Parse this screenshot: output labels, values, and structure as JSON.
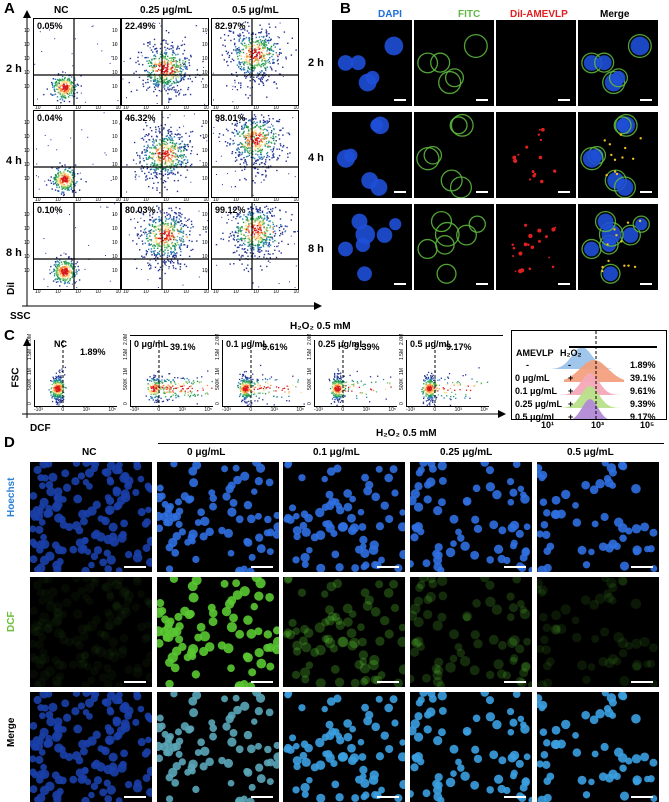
{
  "panel_labels": {
    "a": "A",
    "b": "B",
    "c": "C",
    "d": "D"
  },
  "panelA": {
    "columns": [
      "NC",
      "0.25 μg/mL",
      "0.5 μg/mL"
    ],
    "rows": [
      "2 h",
      "4 h",
      "8 h"
    ],
    "percentages": [
      [
        "0.05%",
        "22.49%",
        "82.97%"
      ],
      [
        "0.04%",
        "46.32%",
        "98.01%"
      ],
      [
        "0.10%",
        "80.03%",
        "99.12%"
      ]
    ],
    "y_axis_label": "DiI",
    "x_axis_label": "SSC",
    "tick": "10"
  },
  "panelB": {
    "columns": [
      "DAPI",
      "FITC",
      "DiI-AMEVLP",
      "Merge"
    ],
    "rows": [
      "2 h",
      "4 h",
      "8 h"
    ],
    "colors": {
      "DAPI": "#1e6fd9",
      "FITC": "#5fb846",
      "DiI-AMEVLP": "#e02020",
      "Merge": "#000000"
    }
  },
  "panelC": {
    "treatment_header": "H₂O₂ 0.5 mM",
    "plots": [
      {
        "title": "NC",
        "pct": "1.89%"
      },
      {
        "title": "0 μg/mL",
        "pct": "39.1%"
      },
      {
        "title": "0.1 μg/mL",
        "pct": "9.61%"
      },
      {
        "title": "0.25 μg/mL",
        "pct": "9.39%"
      },
      {
        "title": "0.5 μg/mL",
        "pct": "9.17%"
      }
    ],
    "y_axis_label": "FSC",
    "x_axis_label": "DCF",
    "y_ticks": [
      "2.0M",
      "1.5M",
      "1M",
      "500K",
      "0"
    ],
    "x_ticks": [
      "-10³",
      "0",
      "10³",
      "10⁵"
    ],
    "histogram": {
      "col_headers": [
        "AMEVLP",
        "H₂O₂"
      ],
      "rows": [
        {
          "amevlp": "-",
          "h2o2": "-",
          "pct": "1.89%",
          "color": "#9cc3ea"
        },
        {
          "amevlp": "0 μg/mL",
          "h2o2": "+",
          "pct": "39.1%",
          "color": "#f2a07e"
        },
        {
          "amevlp": "0.1 μg/mL",
          "h2o2": "+",
          "pct": "9.61%",
          "color": "#f4a9b8"
        },
        {
          "amevlp": "0.25 μg/mL",
          "h2o2": "+",
          "pct": "9.39%",
          "color": "#b8e08a"
        },
        {
          "amevlp": "0.5 μg/mL",
          "h2o2": "+",
          "pct": "9.17%",
          "color": "#b18ad6"
        }
      ],
      "x_ticks": [
        "10¹",
        "10³",
        "10⁵"
      ]
    }
  },
  "panelD": {
    "treatment_header": "H₂O₂ 0.5 mM",
    "columns": [
      "NC",
      "0 μg/mL",
      "0.1 μg/mL",
      "0.25 μg/mL",
      "0.5 μg/mL"
    ],
    "rows": [
      {
        "label": "Hoechst",
        "color": "#2b7fd4"
      },
      {
        "label": "DCF",
        "color": "#6bbf3a"
      },
      {
        "label": "Merge",
        "color": "#000000"
      }
    ]
  }
}
